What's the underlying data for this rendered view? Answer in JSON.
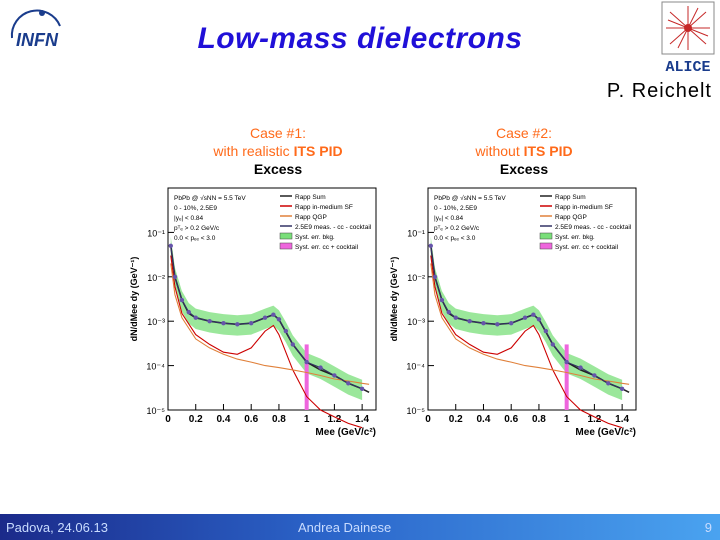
{
  "slide": {
    "title": "Low-mass dielectrons",
    "author": "P. Reichelt",
    "logos": {
      "left": "INFN",
      "right": "ALICE"
    },
    "footer": {
      "left": "Padova, 24.06.13",
      "center": "Andrea Dainese",
      "right": "9"
    },
    "colors": {
      "title": "#2010d8",
      "case_text": "#ff6a1a",
      "footer": "#2b64c9"
    }
  },
  "cases": [
    {
      "line1": "Case #1:",
      "line2_prefix": "with realistic ",
      "line2_bold": "ITS PID",
      "line3": "Excess"
    },
    {
      "line1": "Case #2:",
      "line2_prefix": "without ",
      "line2_bold": "ITS PID",
      "line3": "Excess"
    }
  ],
  "chart_data": [
    {
      "type": "line",
      "title": "Case #1: with realistic ITS PID",
      "xlabel": "Mee (GeV/c²)",
      "ylabel": "dN/dMee dy (GeV⁻¹)",
      "xlim": [
        0,
        1.5
      ],
      "ylim_log10": [
        -5,
        0
      ],
      "x_ticks": [
        "0",
        "0.2",
        "0.4",
        "0.6",
        "0.8",
        "1",
        "1.2",
        "1.4"
      ],
      "y_ticks": [
        "10⁻¹",
        "10⁻²",
        "10⁻³",
        "10⁻⁴",
        "10⁻⁵"
      ],
      "info_text": [
        "PbPb @ √sNN = 5.5 TeV",
        "0 - 10%, 2.5E9",
        "|yₑ| < 0.84",
        "pᵀₑ > 0.2 GeV/c",
        "0.0 < pₑₑ < 3.0"
      ],
      "legend": [
        "Rapp Sum",
        "Rapp in-medium SF",
        "Rapp QGP",
        "2.5E9 meas. - cc - cocktail",
        "Syst. err. bkg.",
        "Syst. err. cc + cocktail"
      ],
      "series": [
        {
          "name": "Rapp Sum",
          "color": "#222222",
          "x": [
            0.02,
            0.05,
            0.1,
            0.15,
            0.2,
            0.3,
            0.4,
            0.5,
            0.6,
            0.7,
            0.76,
            0.8,
            0.9,
            1.0,
            1.1,
            1.2,
            1.3,
            1.4,
            1.45
          ],
          "y": [
            0.05,
            0.01,
            0.003,
            0.0015,
            0.0012,
            0.001,
            0.0009,
            0.00085,
            0.0009,
            0.0012,
            0.0014,
            0.0011,
            0.0003,
            0.00012,
            8e-05,
            6e-05,
            4e-05,
            3e-05,
            2.5e-05
          ]
        },
        {
          "name": "Rapp in-medium SF",
          "color": "#cc0000",
          "x": [
            0.02,
            0.05,
            0.1,
            0.2,
            0.3,
            0.4,
            0.5,
            0.6,
            0.7,
            0.76,
            0.8,
            0.9,
            1.0,
            1.1,
            1.2,
            1.3,
            1.4
          ],
          "y": [
            0.03,
            0.006,
            0.0015,
            0.0005,
            0.0003,
            0.0002,
            0.00018,
            0.00025,
            0.0006,
            0.0008,
            0.0005,
            8e-05,
            2e-05,
            1e-05,
            7e-06,
            5e-06,
            4e-06
          ]
        },
        {
          "name": "Rapp QGP",
          "color": "#e0803a",
          "x": [
            0.02,
            0.05,
            0.1,
            0.2,
            0.3,
            0.4,
            0.5,
            0.6,
            0.7,
            0.8,
            0.9,
            1.0,
            1.1,
            1.2,
            1.3,
            1.4,
            1.45
          ],
          "y": [
            0.02,
            0.004,
            0.0012,
            0.0004,
            0.00025,
            0.00018,
            0.00014,
            0.00012,
            0.0001,
            9e-05,
            8e-05,
            7e-05,
            6e-05,
            5e-05,
            4.5e-05,
            4e-05,
            3.8e-05
          ]
        },
        {
          "name": "2.5E9 meas. - cc - cocktail",
          "color": "#333366",
          "x": [
            0.02,
            0.05,
            0.1,
            0.15,
            0.2,
            0.3,
            0.4,
            0.5,
            0.6,
            0.7,
            0.76,
            0.8,
            0.85,
            0.9,
            1.0,
            1.1,
            1.2,
            1.3,
            1.4
          ],
          "y": [
            0.05,
            0.01,
            0.003,
            0.0016,
            0.0012,
            0.001,
            0.0009,
            0.00085,
            0.0009,
            0.0012,
            0.0014,
            0.0011,
            0.0006,
            0.0003,
            0.00012,
            9e-05,
            6e-05,
            4e-05,
            3e-05
          ]
        }
      ]
    },
    {
      "type": "line",
      "title": "Case #2: without ITS PID",
      "xlabel": "Mee (GeV/c²)",
      "ylabel": "dN/dMee dy (GeV⁻¹)",
      "xlim": [
        0,
        1.5
      ],
      "ylim_log10": [
        -5,
        0
      ],
      "x_ticks": [
        "0",
        "0.2",
        "0.4",
        "0.6",
        "0.8",
        "1",
        "1.2",
        "1.4"
      ],
      "y_ticks": [
        "10⁻¹",
        "10⁻²",
        "10⁻³",
        "10⁻⁴",
        "10⁻⁵"
      ],
      "info_text": [
        "PbPb @ √sNN = 5.5 TeV",
        "0 - 10%, 2.5E9",
        "|yₑ| < 0.84",
        "pᵀₑ > 0.2 GeV/c",
        "0.0 < pₑₑ < 3.0"
      ],
      "legend": [
        "Rapp Sum",
        "Rapp in-medium SF",
        "Rapp QGP",
        "2.5E9 meas. - cc - cocktail",
        "Syst. err. bkg.",
        "Syst. err. cc + cocktail"
      ],
      "series": [
        {
          "name": "Rapp Sum",
          "color": "#222222",
          "x": [
            0.02,
            0.05,
            0.1,
            0.15,
            0.2,
            0.3,
            0.4,
            0.5,
            0.6,
            0.7,
            0.76,
            0.8,
            0.9,
            1.0,
            1.1,
            1.2,
            1.3,
            1.4,
            1.45
          ],
          "y": [
            0.05,
            0.01,
            0.003,
            0.0015,
            0.0012,
            0.001,
            0.0009,
            0.00085,
            0.0009,
            0.0012,
            0.0014,
            0.0011,
            0.0003,
            0.00012,
            8e-05,
            6e-05,
            4e-05,
            3e-05,
            2.5e-05
          ]
        },
        {
          "name": "Rapp in-medium SF",
          "color": "#cc0000",
          "x": [
            0.02,
            0.05,
            0.1,
            0.2,
            0.3,
            0.4,
            0.5,
            0.6,
            0.7,
            0.76,
            0.8,
            0.9,
            1.0,
            1.1,
            1.2,
            1.3,
            1.4
          ],
          "y": [
            0.03,
            0.006,
            0.0015,
            0.0005,
            0.0003,
            0.0002,
            0.00018,
            0.00025,
            0.0006,
            0.0008,
            0.0005,
            8e-05,
            2e-05,
            1e-05,
            7e-06,
            5e-06,
            4e-06
          ]
        },
        {
          "name": "Rapp QGP",
          "color": "#e0803a",
          "x": [
            0.02,
            0.05,
            0.1,
            0.2,
            0.3,
            0.4,
            0.5,
            0.6,
            0.7,
            0.8,
            0.9,
            1.0,
            1.1,
            1.2,
            1.3,
            1.4,
            1.45
          ],
          "y": [
            0.02,
            0.004,
            0.0012,
            0.0004,
            0.00025,
            0.00018,
            0.00014,
            0.00012,
            0.0001,
            9e-05,
            8e-05,
            7e-05,
            6e-05,
            5e-05,
            4.5e-05,
            4e-05,
            3.8e-05
          ]
        },
        {
          "name": "2.5E9 meas. - cc - cocktail",
          "color": "#333366",
          "x": [
            0.02,
            0.05,
            0.1,
            0.15,
            0.2,
            0.3,
            0.4,
            0.5,
            0.6,
            0.7,
            0.76,
            0.8,
            0.85,
            0.9,
            1.0,
            1.1,
            1.2,
            1.3,
            1.4
          ],
          "y": [
            0.05,
            0.01,
            0.003,
            0.0016,
            0.0012,
            0.001,
            0.0009,
            0.00085,
            0.0009,
            0.0012,
            0.0014,
            0.0011,
            0.0006,
            0.0003,
            0.00012,
            9e-05,
            6e-05,
            4e-05,
            3e-05
          ]
        }
      ]
    }
  ]
}
